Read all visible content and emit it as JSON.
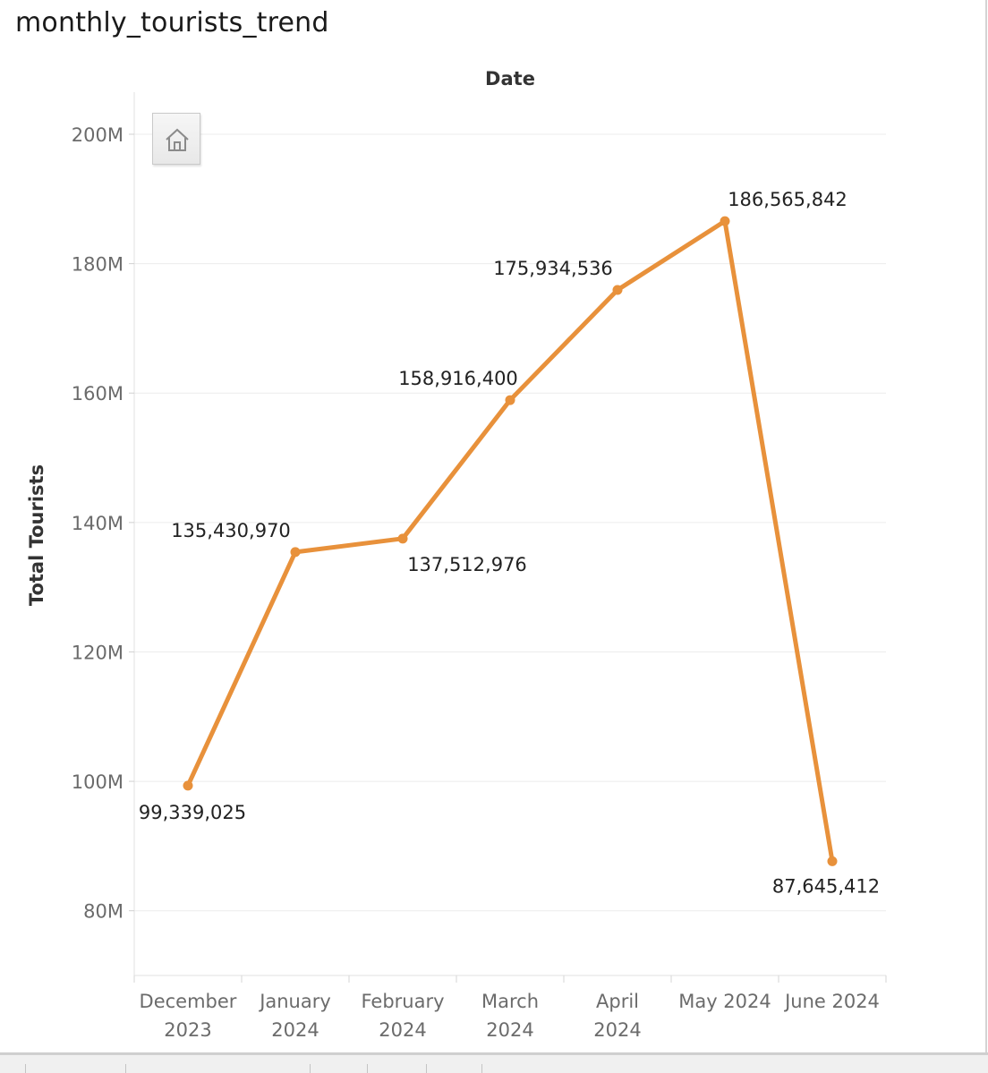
{
  "sheet": {
    "title": "monthly_tourists_trend"
  },
  "toolbar": {
    "home_icon": "home-icon"
  },
  "colors": {
    "line": "#e8913b",
    "grid": "#ececec",
    "axis_text": "#6b6b6b",
    "label_text": "#222222",
    "title_text": "#333333"
  },
  "chart_data": {
    "type": "line",
    "title": "",
    "column_header": "Date",
    "ylabel": "Total Tourists",
    "categories": [
      "December 2023",
      "January 2024",
      "February 2024",
      "March 2024",
      "April 2024",
      "May 2024",
      "June 2024"
    ],
    "category_labels": [
      [
        "December",
        "2023"
      ],
      [
        "January",
        "2024"
      ],
      [
        "February",
        "2024"
      ],
      [
        "March",
        "2024"
      ],
      [
        "April",
        "2024"
      ],
      [
        "May 2024"
      ],
      [
        "June 2024"
      ]
    ],
    "series": [
      {
        "values": [
          99339025,
          135430970,
          137512976,
          158916400,
          175934536,
          186565842,
          87645412
        ]
      }
    ],
    "data_labels": [
      "99,339,025",
      "135,430,970",
      "137,512,976",
      "158,916,400",
      "175,934,536",
      "186,565,842",
      "87,645,412"
    ],
    "y_ticks": [
      80000000,
      100000000,
      120000000,
      140000000,
      160000000,
      180000000,
      200000000
    ],
    "y_tick_labels": [
      "80M",
      "100M",
      "120M",
      "140M",
      "160M",
      "180M",
      "200M"
    ],
    "ylim": [
      70000000,
      206500000
    ],
    "grid": true,
    "legend": "none"
  }
}
